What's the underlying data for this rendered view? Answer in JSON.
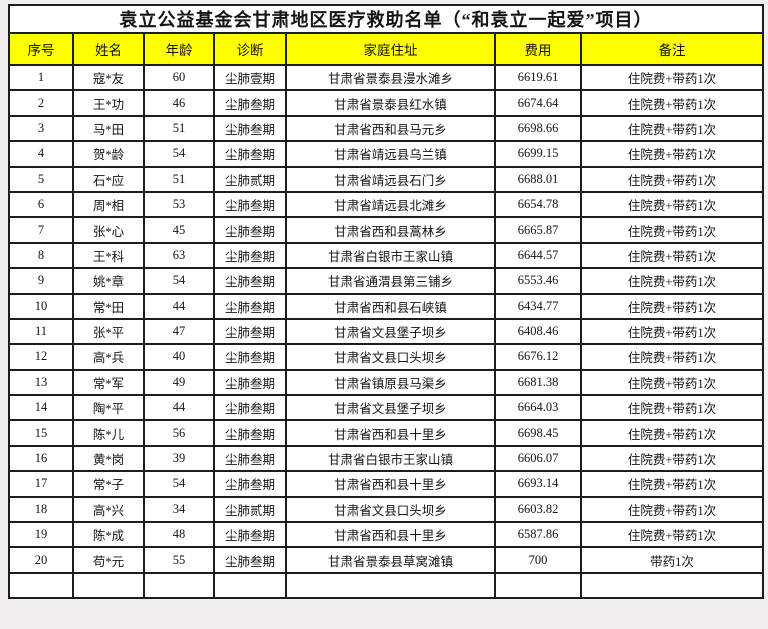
{
  "page": {
    "background_color": "#f1f0ee",
    "header_bg_color": "#ffff00",
    "border_color": "#1d1d1d"
  },
  "table": {
    "title": "袁立公益基金会甘肃地区医疗救助名单（“和袁立一起爱”项目）",
    "columns": [
      "序号",
      "姓名",
      "年龄",
      "诊断",
      "家庭住址",
      "费用",
      "备注"
    ],
    "column_keys": [
      "index",
      "name",
      "age",
      "diagnosis",
      "address",
      "fee",
      "note"
    ],
    "rows": [
      [
        "1",
        "寇*友",
        "60",
        "尘肺壹期",
        "甘肃省景泰县漫水滩乡",
        "6619.61",
        "住院费+带药1次"
      ],
      [
        "2",
        "王*功",
        "46",
        "尘肺叁期",
        "甘肃省景泰县红水镇",
        "6674.64",
        "住院费+带药1次"
      ],
      [
        "3",
        "马*田",
        "51",
        "尘肺叁期",
        "甘肃省西和县马元乡",
        "6698.66",
        "住院费+带药1次"
      ],
      [
        "4",
        "贺*龄",
        "54",
        "尘肺叁期",
        "甘肃省靖远县乌兰镇",
        "6699.15",
        "住院费+带药1次"
      ],
      [
        "5",
        "石*应",
        "51",
        "尘肺贰期",
        "甘肃省靖远县石门乡",
        "6688.01",
        "住院费+带药1次"
      ],
      [
        "6",
        "周*相",
        "53",
        "尘肺叁期",
        "甘肃省靖远县北滩乡",
        "6654.78",
        "住院费+带药1次"
      ],
      [
        "7",
        "张*心",
        "45",
        "尘肺叁期",
        "甘肃省西和县蒿林乡",
        "6665.87",
        "住院费+带药1次"
      ],
      [
        "8",
        "王*科",
        "63",
        "尘肺叁期",
        "甘肃省白银市王家山镇",
        "6644.57",
        "住院费+带药1次"
      ],
      [
        "9",
        "姚*章",
        "54",
        "尘肺叁期",
        "甘肃省通渭县第三铺乡",
        "6553.46",
        "住院费+带药1次"
      ],
      [
        "10",
        "常*田",
        "44",
        "尘肺叁期",
        "甘肃省西和县石峡镇",
        "6434.77",
        "住院费+带药1次"
      ],
      [
        "11",
        "张*平",
        "47",
        "尘肺叁期",
        "甘肃省文县堡子坝乡",
        "6408.46",
        "住院费+带药1次"
      ],
      [
        "12",
        "高*兵",
        "40",
        "尘肺叁期",
        "甘肃省文县口头坝乡",
        "6676.12",
        "住院费+带药1次"
      ],
      [
        "13",
        "常*军",
        "49",
        "尘肺叁期",
        "甘肃省镇原县马渠乡",
        "6681.38",
        "住院费+带药1次"
      ],
      [
        "14",
        "陶*平",
        "44",
        "尘肺叁期",
        "甘肃省文县堡子坝乡",
        "6664.03",
        "住院费+带药1次"
      ],
      [
        "15",
        "陈*儿",
        "56",
        "尘肺叁期",
        "甘肃省西和县十里乡",
        "6698.45",
        "住院费+带药1次"
      ],
      [
        "16",
        "黄*岗",
        "39",
        "尘肺叁期",
        "甘肃省白银市王家山镇",
        "6606.07",
        "住院费+带药1次"
      ],
      [
        "17",
        "常*子",
        "54",
        "尘肺叁期",
        "甘肃省西和县十里乡",
        "6693.14",
        "住院费+带药1次"
      ],
      [
        "18",
        "高*兴",
        "34",
        "尘肺贰期",
        "甘肃省文县口头坝乡",
        "6603.82",
        "住院费+带药1次"
      ],
      [
        "19",
        "陈*成",
        "48",
        "尘肺叁期",
        "甘肃省西和县十里乡",
        "6587.86",
        "住院费+带药1次"
      ],
      [
        "20",
        "苟*元",
        "55",
        "尘肺叁期",
        "甘肃省景泰县草窝滩镇",
        "700",
        "带药1次"
      ]
    ]
  }
}
